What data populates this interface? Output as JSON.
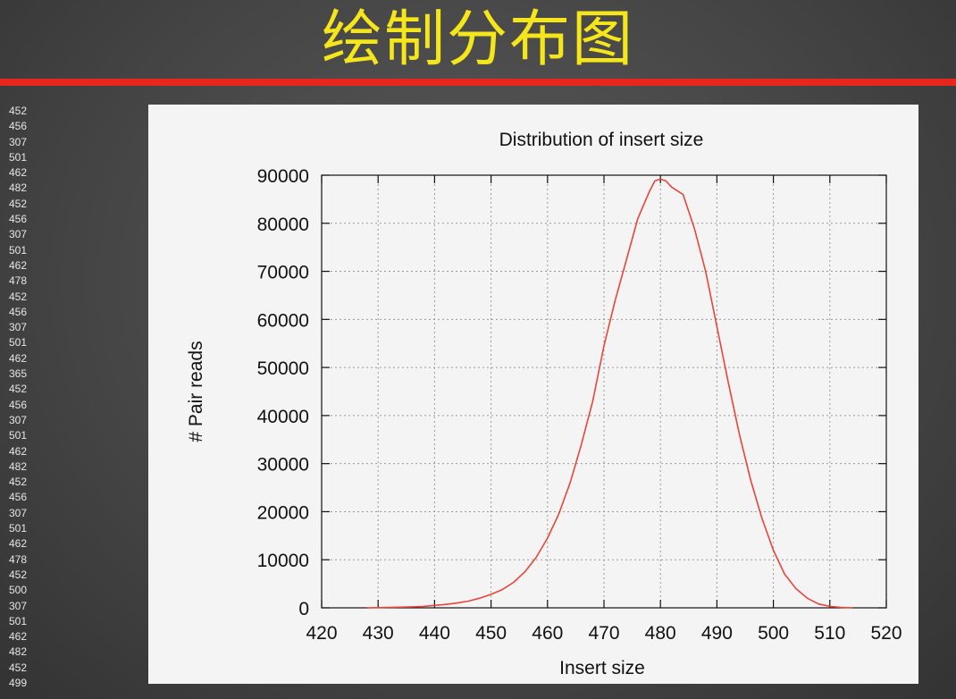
{
  "slide": {
    "title": "绘制分布图"
  },
  "left_column_numbers": [
    "452",
    "456",
    "307",
    "501",
    "462",
    "482",
    "452",
    "456",
    "307",
    "501",
    "462",
    "478",
    "452",
    "456",
    "307",
    "501",
    "462",
    "365",
    "452",
    "456",
    "307",
    "501",
    "462",
    "482",
    "452",
    "456",
    "307",
    "501",
    "462",
    "478",
    "452",
    "500",
    "307",
    "501",
    "462",
    "482",
    "452",
    "499"
  ],
  "colors": {
    "slide_title": "#f5e61c",
    "title_rule": "#e8271c",
    "series_line": "#e8453a",
    "plot_panel": "#f4f4f4"
  },
  "chart_data": {
    "type": "line",
    "title": "Distribution of insert size",
    "xlabel": "Insert size",
    "ylabel": "# Pair reads",
    "xlim": [
      420,
      520
    ],
    "ylim": [
      0,
      90000
    ],
    "x_ticks": [
      420,
      430,
      440,
      450,
      460,
      470,
      480,
      490,
      500,
      510,
      520
    ],
    "y_ticks": [
      0,
      10000,
      20000,
      30000,
      40000,
      50000,
      60000,
      70000,
      80000,
      90000
    ],
    "grid": true,
    "legend": "none",
    "series": [
      {
        "x": [
          428,
          432,
          436,
          438,
          440,
          442,
          444,
          446,
          448,
          450,
          452,
          454,
          456,
          458,
          460,
          462,
          464,
          466,
          468,
          470,
          472,
          474,
          476,
          478,
          479,
          480,
          481,
          482,
          484,
          486,
          488,
          490,
          492,
          494,
          496,
          498,
          500,
          502,
          504,
          506,
          508,
          510,
          512,
          514
        ],
        "y": [
          0,
          100,
          200,
          300,
          500,
          700,
          1000,
          1400,
          2000,
          2800,
          3800,
          5300,
          7500,
          10500,
          14500,
          19500,
          26000,
          34000,
          43000,
          54500,
          64000,
          72500,
          81000,
          86500,
          88800,
          89200,
          88800,
          87500,
          86000,
          79000,
          70000,
          58500,
          47000,
          36000,
          26500,
          18500,
          12000,
          7000,
          4000,
          2000,
          800,
          300,
          100,
          0
        ]
      }
    ]
  }
}
